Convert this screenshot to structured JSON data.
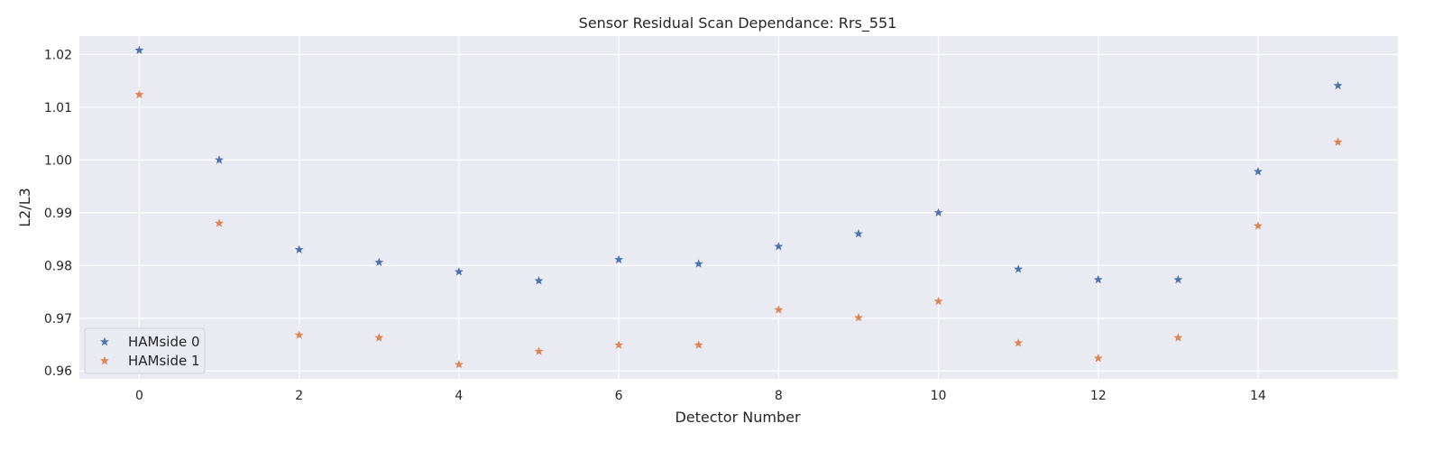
{
  "chart_data": {
    "type": "scatter",
    "title": "Sensor Residual Scan Dependance: Rrs_551",
    "xlabel": "Detector Number",
    "ylabel": "L2/L3",
    "xlim": [
      -0.75,
      15.75
    ],
    "ylim": [
      0.9585,
      1.0235
    ],
    "xticks": [
      0,
      2,
      4,
      6,
      8,
      10,
      12,
      14
    ],
    "yticks": [
      0.96,
      0.97,
      0.98,
      0.99,
      1.0,
      1.01,
      1.02
    ],
    "ytick_labels": [
      "0.96",
      "0.97",
      "0.98",
      "0.99",
      "1.00",
      "1.01",
      "1.02"
    ],
    "grid": true,
    "legend_position": "lower-left",
    "marker": "star",
    "x": [
      0,
      1,
      2,
      3,
      4,
      5,
      6,
      7,
      8,
      9,
      10,
      11,
      12,
      13,
      14,
      15
    ],
    "series": [
      {
        "name": "HAMside 0",
        "color": "#4c72b0",
        "values": [
          1.0208,
          1.0,
          0.983,
          0.9806,
          0.9788,
          0.9771,
          0.9811,
          0.9803,
          0.9836,
          0.986,
          0.99,
          0.9793,
          0.9773,
          0.9773,
          0.9978,
          1.0141
        ]
      },
      {
        "name": "HAMside 1",
        "color": "#dd8452",
        "values": [
          1.0124,
          0.988,
          0.9668,
          0.9663,
          0.9612,
          0.9637,
          0.9649,
          0.9649,
          0.9716,
          0.9701,
          0.9732,
          0.9653,
          0.9624,
          0.9663,
          0.9875,
          1.0034
        ]
      }
    ]
  }
}
